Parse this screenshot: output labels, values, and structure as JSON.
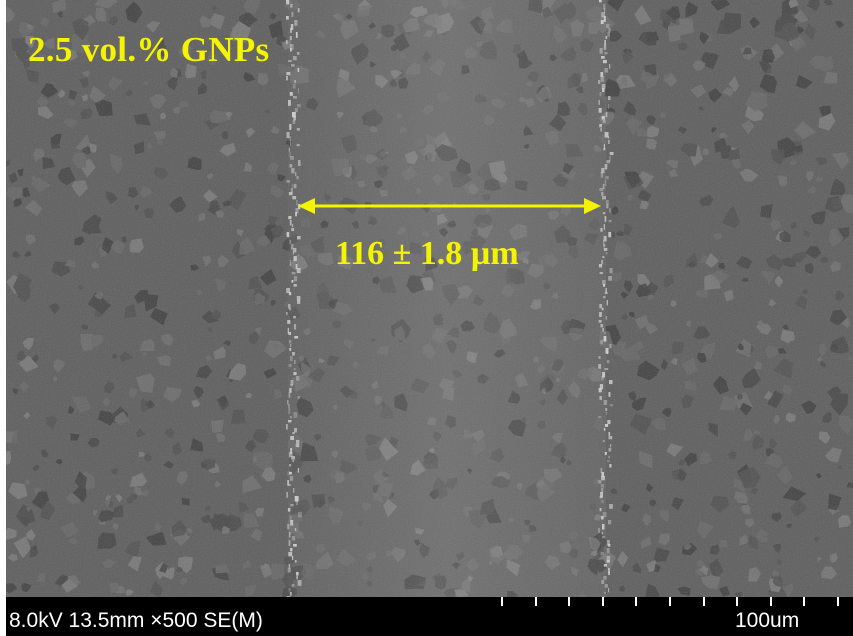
{
  "image": {
    "sample_label": "2.5 vol.% GNPs",
    "measurement_label": "116 ± 1.8 µm",
    "annotation_color": "#f4f400",
    "background_tone": "#5c5c5c",
    "icons": [
      "double-headed-arrow"
    ]
  },
  "info_bar": {
    "acquisition": "8.0kV 13.5mm ×500 SE(M)",
    "scale_label": "100um",
    "scale_ticks": 11
  }
}
